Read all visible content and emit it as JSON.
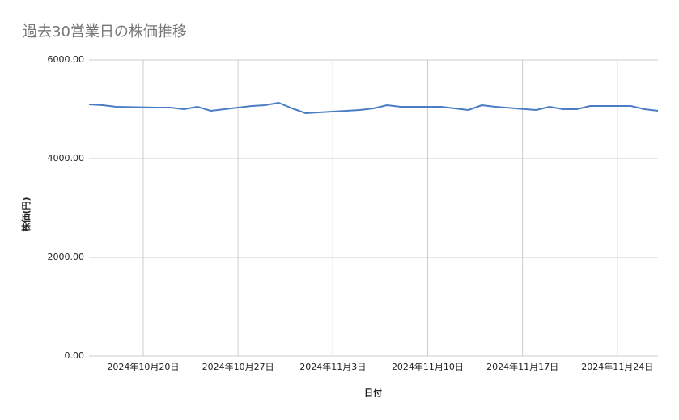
{
  "chart_data": {
    "type": "line",
    "title": "過去30営業日の株価推移",
    "x_label": "日付",
    "y_label": "株価(円)",
    "x": [
      "2024-10-16",
      "2024-10-17",
      "2024-10-18",
      "2024-10-21",
      "2024-10-22",
      "2024-10-23",
      "2024-10-24",
      "2024-10-25",
      "2024-10-28",
      "2024-10-29",
      "2024-10-30",
      "2024-10-31",
      "2024-11-01",
      "2024-11-05",
      "2024-11-06",
      "2024-11-07",
      "2024-11-08",
      "2024-11-11",
      "2024-11-12",
      "2024-11-13",
      "2024-11-14",
      "2024-11-15",
      "2024-11-18",
      "2024-11-19",
      "2024-11-20",
      "2024-11-21",
      "2024-11-22",
      "2024-11-25",
      "2024-11-26",
      "2024-11-27"
    ],
    "series": [
      {
        "name": "株価(円)",
        "color": "#4a7dc4",
        "values": [
          5098,
          5082,
          5049,
          5033,
          5033,
          5000,
          5049,
          4967,
          5066,
          5082,
          5131,
          5016,
          4918,
          4984,
          5016,
          5082,
          5049,
          5049,
          5016,
          4984,
          5082,
          5049,
          4984,
          5049,
          5000,
          5000,
          5066,
          5066,
          5000,
          4967
        ]
      }
    ],
    "xlim": [
      "2024-10-16",
      "2024-11-27"
    ],
    "xticks": [
      {
        "value": "2024-10-20",
        "label": "2024年10月20日"
      },
      {
        "value": "2024-10-27",
        "label": "2024年10月27日"
      },
      {
        "value": "2024-11-03",
        "label": "2024年11月3日"
      },
      {
        "value": "2024-11-10",
        "label": "2024年11月10日"
      },
      {
        "value": "2024-11-17",
        "label": "2024年11月17日"
      },
      {
        "value": "2024-11-24",
        "label": "2024年11月24日"
      }
    ],
    "ylim": [
      0,
      6000
    ],
    "yticks": [
      {
        "value": 0,
        "label": "0.00"
      },
      {
        "value": 2000,
        "label": "2000.00"
      },
      {
        "value": 4000,
        "label": "4000.00"
      },
      {
        "value": 6000,
        "label": "6000.00"
      }
    ],
    "grid": true
  }
}
